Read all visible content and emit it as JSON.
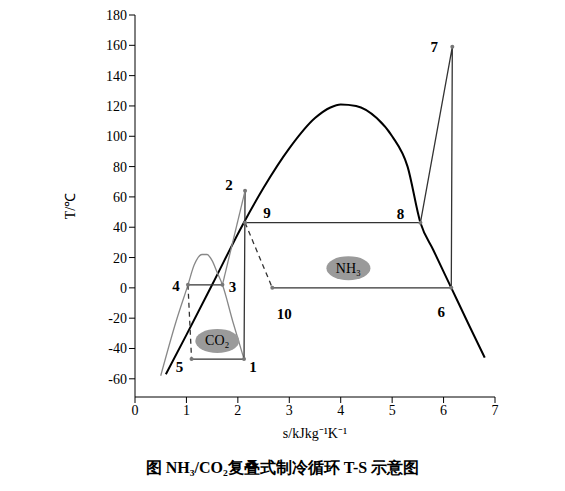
{
  "chart_data": {
    "type": "line",
    "title": "图  NH₃/CO₂复叠式制冷循环 T-S 示意图",
    "x_label": "s/kJkg⁻¹K⁻¹",
    "y_label": "T/℃",
    "xlim": [
      0,
      7
    ],
    "xticks": [
      0,
      1,
      2,
      3,
      4,
      5,
      6,
      7
    ],
    "ylim": [
      -72,
      180
    ],
    "yticks": [
      -60,
      -40,
      -20,
      0,
      20,
      40,
      60,
      80,
      100,
      120,
      140,
      160,
      180
    ],
    "grid": false,
    "series": [
      {
        "color": "#000000",
        "line_style": "solid",
        "x": [
          0.6,
          1.0,
          1.5,
          2.1,
          2.5,
          3.0,
          3.5,
          3.8,
          4.0,
          4.3,
          4.7,
          5.0,
          5.3,
          5.55,
          5.8,
          6.15,
          6.5,
          6.8
        ],
        "values": [
          -57,
          -31,
          2,
          42,
          66,
          92,
          112,
          119,
          121,
          120,
          112,
          100,
          80,
          43,
          25,
          0,
          -25,
          -46
        ]
      },
      {
        "color": "#888888",
        "line_style": "solid",
        "x": [
          0.5,
          0.8,
          1.03,
          1.15,
          1.3,
          1.4,
          1.5,
          1.6,
          1.7,
          1.9,
          2.12
        ],
        "values": [
          -58,
          -22,
          2,
          15,
          22,
          22,
          18,
          10,
          2,
          -22,
          -47
        ]
      },
      {
        "color": "#333333",
        "line_style": "solid",
        "x": [
          6.15,
          6.17,
          5.55,
          2.14
        ],
        "values": [
          0,
          159,
          43,
          43
        ]
      },
      {
        "color": "#333333",
        "line_style": "dashed",
        "x": [
          2.14,
          2.67
        ],
        "values": [
          43,
          0
        ]
      },
      {
        "color": "#333333",
        "line_style": "solid",
        "x": [
          2.67,
          6.15
        ],
        "values": [
          0,
          0
        ]
      },
      {
        "color": "#333333",
        "line_style": "solid",
        "x": [
          1.1,
          2.12,
          2.14
        ],
        "values": [
          -47,
          -47,
          64
        ]
      },
      {
        "color": "#888888",
        "line_style": "solid",
        "x": [
          2.14,
          1.7
        ],
        "values": [
          64,
          2
        ]
      },
      {
        "color": "#333333",
        "line_style": "solid",
        "x": [
          1.7,
          1.03
        ],
        "values": [
          2,
          2
        ]
      },
      {
        "color": "#333333",
        "line_style": "dashed",
        "x": [
          1.03,
          1.1
        ],
        "values": [
          2,
          -47
        ]
      }
    ],
    "points": [
      {
        "label": "1",
        "x": 2.12,
        "y": -47
      },
      {
        "label": "2",
        "x": 2.14,
        "y": 64
      },
      {
        "label": "3",
        "x": 1.7,
        "y": 2
      },
      {
        "label": "4",
        "x": 1.03,
        "y": 2
      },
      {
        "label": "5",
        "x": 1.1,
        "y": -47
      },
      {
        "label": "6",
        "x": 6.15,
        "y": 0
      },
      {
        "label": "7",
        "x": 6.17,
        "y": 159
      },
      {
        "label": "8",
        "x": 5.55,
        "y": 43
      },
      {
        "label": "9",
        "x": 2.14,
        "y": 43
      },
      {
        "label": "10",
        "x": 2.67,
        "y": 0
      }
    ],
    "annotations": [
      {
        "text": "NH₃",
        "x": 4.15,
        "y": 13
      },
      {
        "text": "CO₂",
        "x": 1.6,
        "y": -35
      }
    ]
  }
}
